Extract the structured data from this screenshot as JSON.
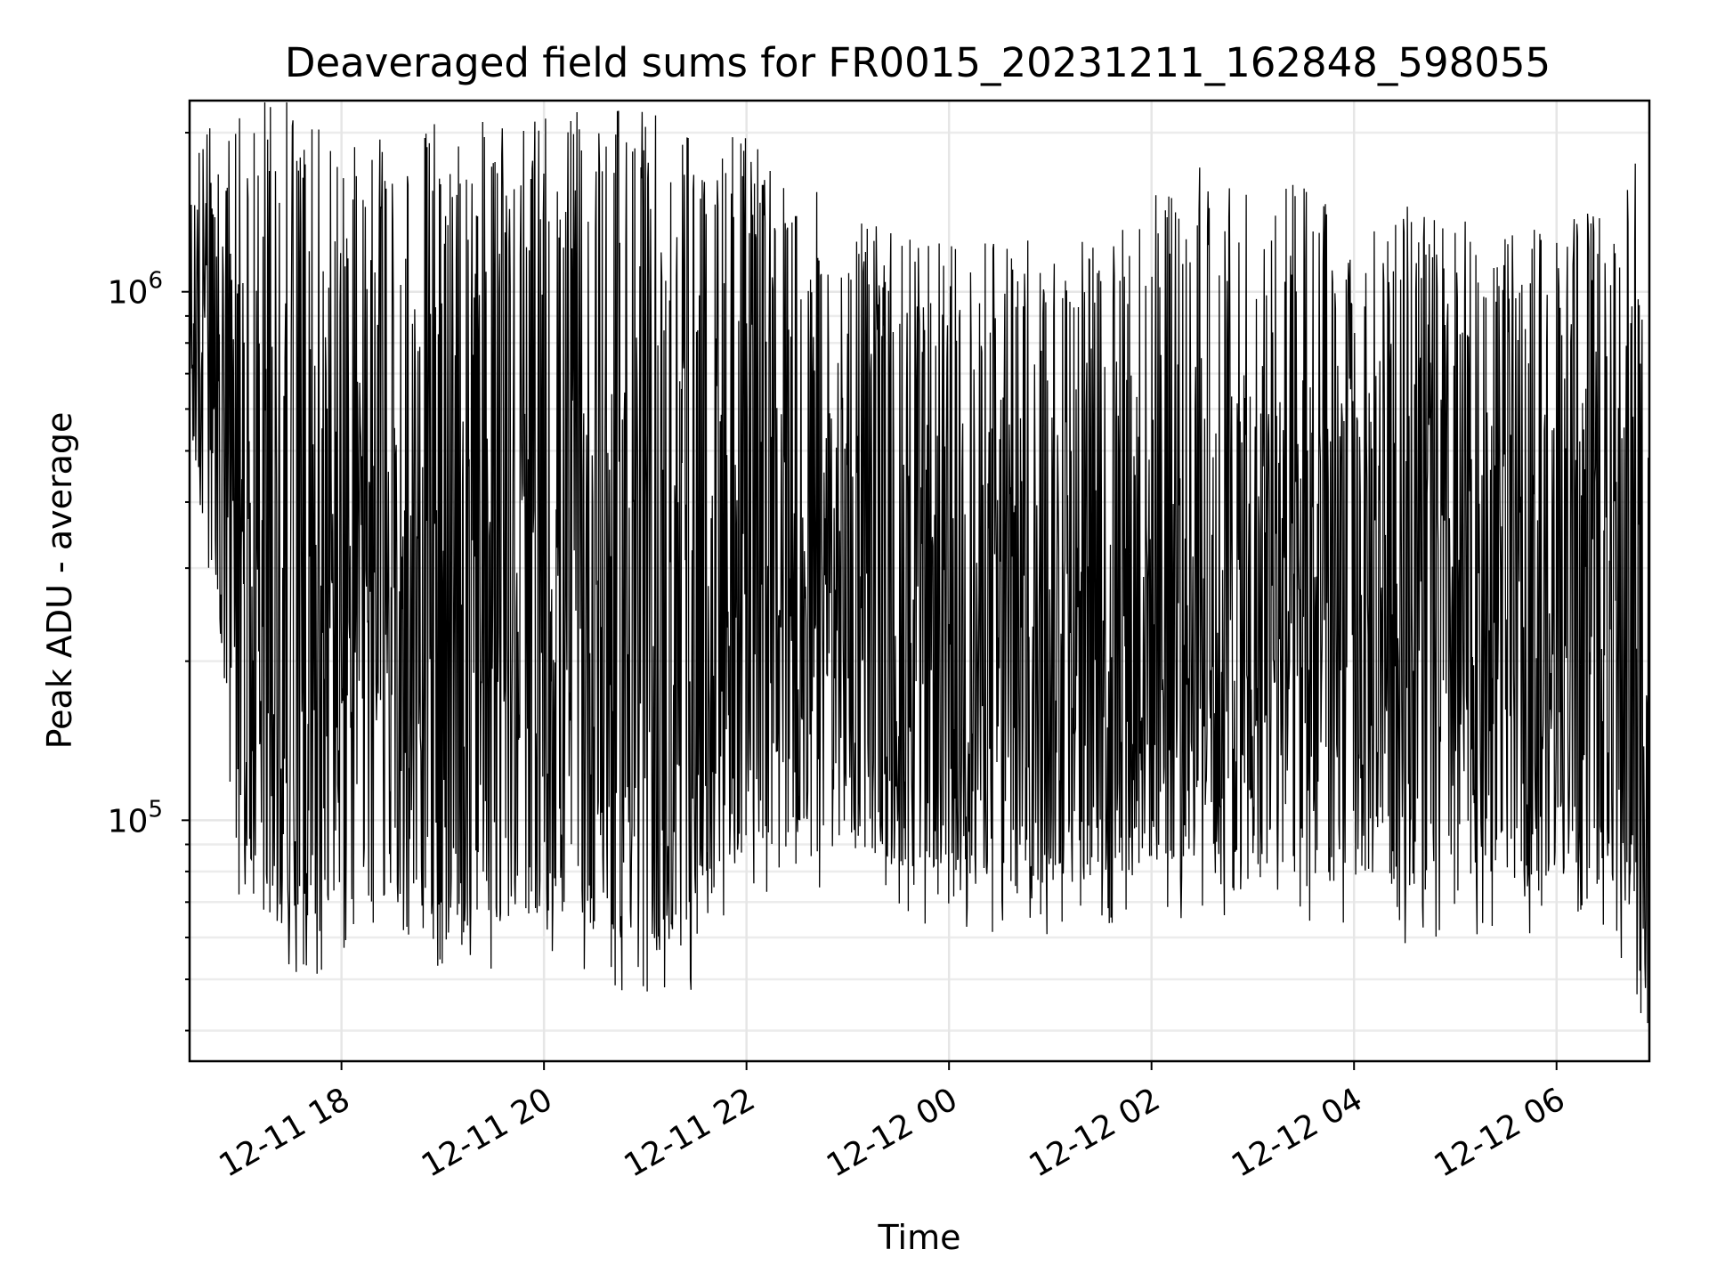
{
  "chart_data": {
    "type": "line",
    "title": "Deaveraged field sums for FR0015_20231211_162848_598055",
    "xlabel": "Time",
    "ylabel": "Peak ADU - average",
    "yscale": "log",
    "grid": true,
    "line_color": "#000000",
    "xlim": [
      "2023-12-11 16:30",
      "2023-12-12 06:55"
    ],
    "ylim": [
      35000,
      2300000
    ],
    "x_ticks": [
      {
        "value": "2023-12-11 18:00",
        "label": "12-11 18"
      },
      {
        "value": "2023-12-11 20:00",
        "label": "12-11 20"
      },
      {
        "value": "2023-12-11 22:00",
        "label": "12-11 22"
      },
      {
        "value": "2023-12-12 00:00",
        "label": "12-12 00"
      },
      {
        "value": "2023-12-12 02:00",
        "label": "12-12 02"
      },
      {
        "value": "2023-12-12 04:00",
        "label": "12-12 04"
      },
      {
        "value": "2023-12-12 06:00",
        "label": "12-12 06"
      }
    ],
    "y_ticks": [
      {
        "value": 100000,
        "base": "10",
        "exp": "5"
      },
      {
        "value": 1000000,
        "base": "10",
        "exp": "6"
      }
    ],
    "series": [
      {
        "x": [
          "2023-12-11 16:30",
          "2023-12-11 17:00",
          "2023-12-11 17:30",
          "2023-12-11 18:00",
          "2023-12-11 18:30",
          "2023-12-11 19:00",
          "2023-12-11 19:30",
          "2023-12-11 20:00",
          "2023-12-11 20:30",
          "2023-12-11 21:00",
          "2023-12-11 21:30",
          "2023-12-11 22:00",
          "2023-12-11 22:30",
          "2023-12-11 23:00",
          "2023-12-11 23:30",
          "2023-12-12 00:00",
          "2023-12-12 00:30",
          "2023-12-12 01:00",
          "2023-12-12 01:30",
          "2023-12-12 02:00",
          "2023-12-12 02:30",
          "2023-12-12 03:00",
          "2023-12-12 03:30",
          "2023-12-12 04:00",
          "2023-12-12 04:30",
          "2023-12-12 05:00",
          "2023-12-12 05:30",
          "2023-12-12 06:00",
          "2023-12-12 06:30",
          "2023-12-12 06:55"
        ],
        "upper": [
          1500000,
          1700000,
          1850000,
          1500000,
          1550000,
          1650000,
          1650000,
          1650000,
          1700000,
          1700000,
          1650000,
          1500000,
          1300000,
          1100000,
          1000000,
          950000,
          1000000,
          950000,
          1000000,
          1200000,
          1350000,
          1200000,
          1250000,
          1100000,
          1150000,
          1050000,
          1050000,
          1000000,
          1200000,
          1900000
        ],
        "lower": [
          550000,
          90000,
          65000,
          68000,
          70000,
          68000,
          65000,
          68000,
          62000,
          58000,
          62000,
          90000,
          95000,
          92000,
          82000,
          80000,
          78000,
          75000,
          78000,
          82000,
          85000,
          82000,
          80000,
          78000,
          75000,
          78000,
          80000,
          78000,
          82000,
          45000
        ]
      }
    ]
  }
}
